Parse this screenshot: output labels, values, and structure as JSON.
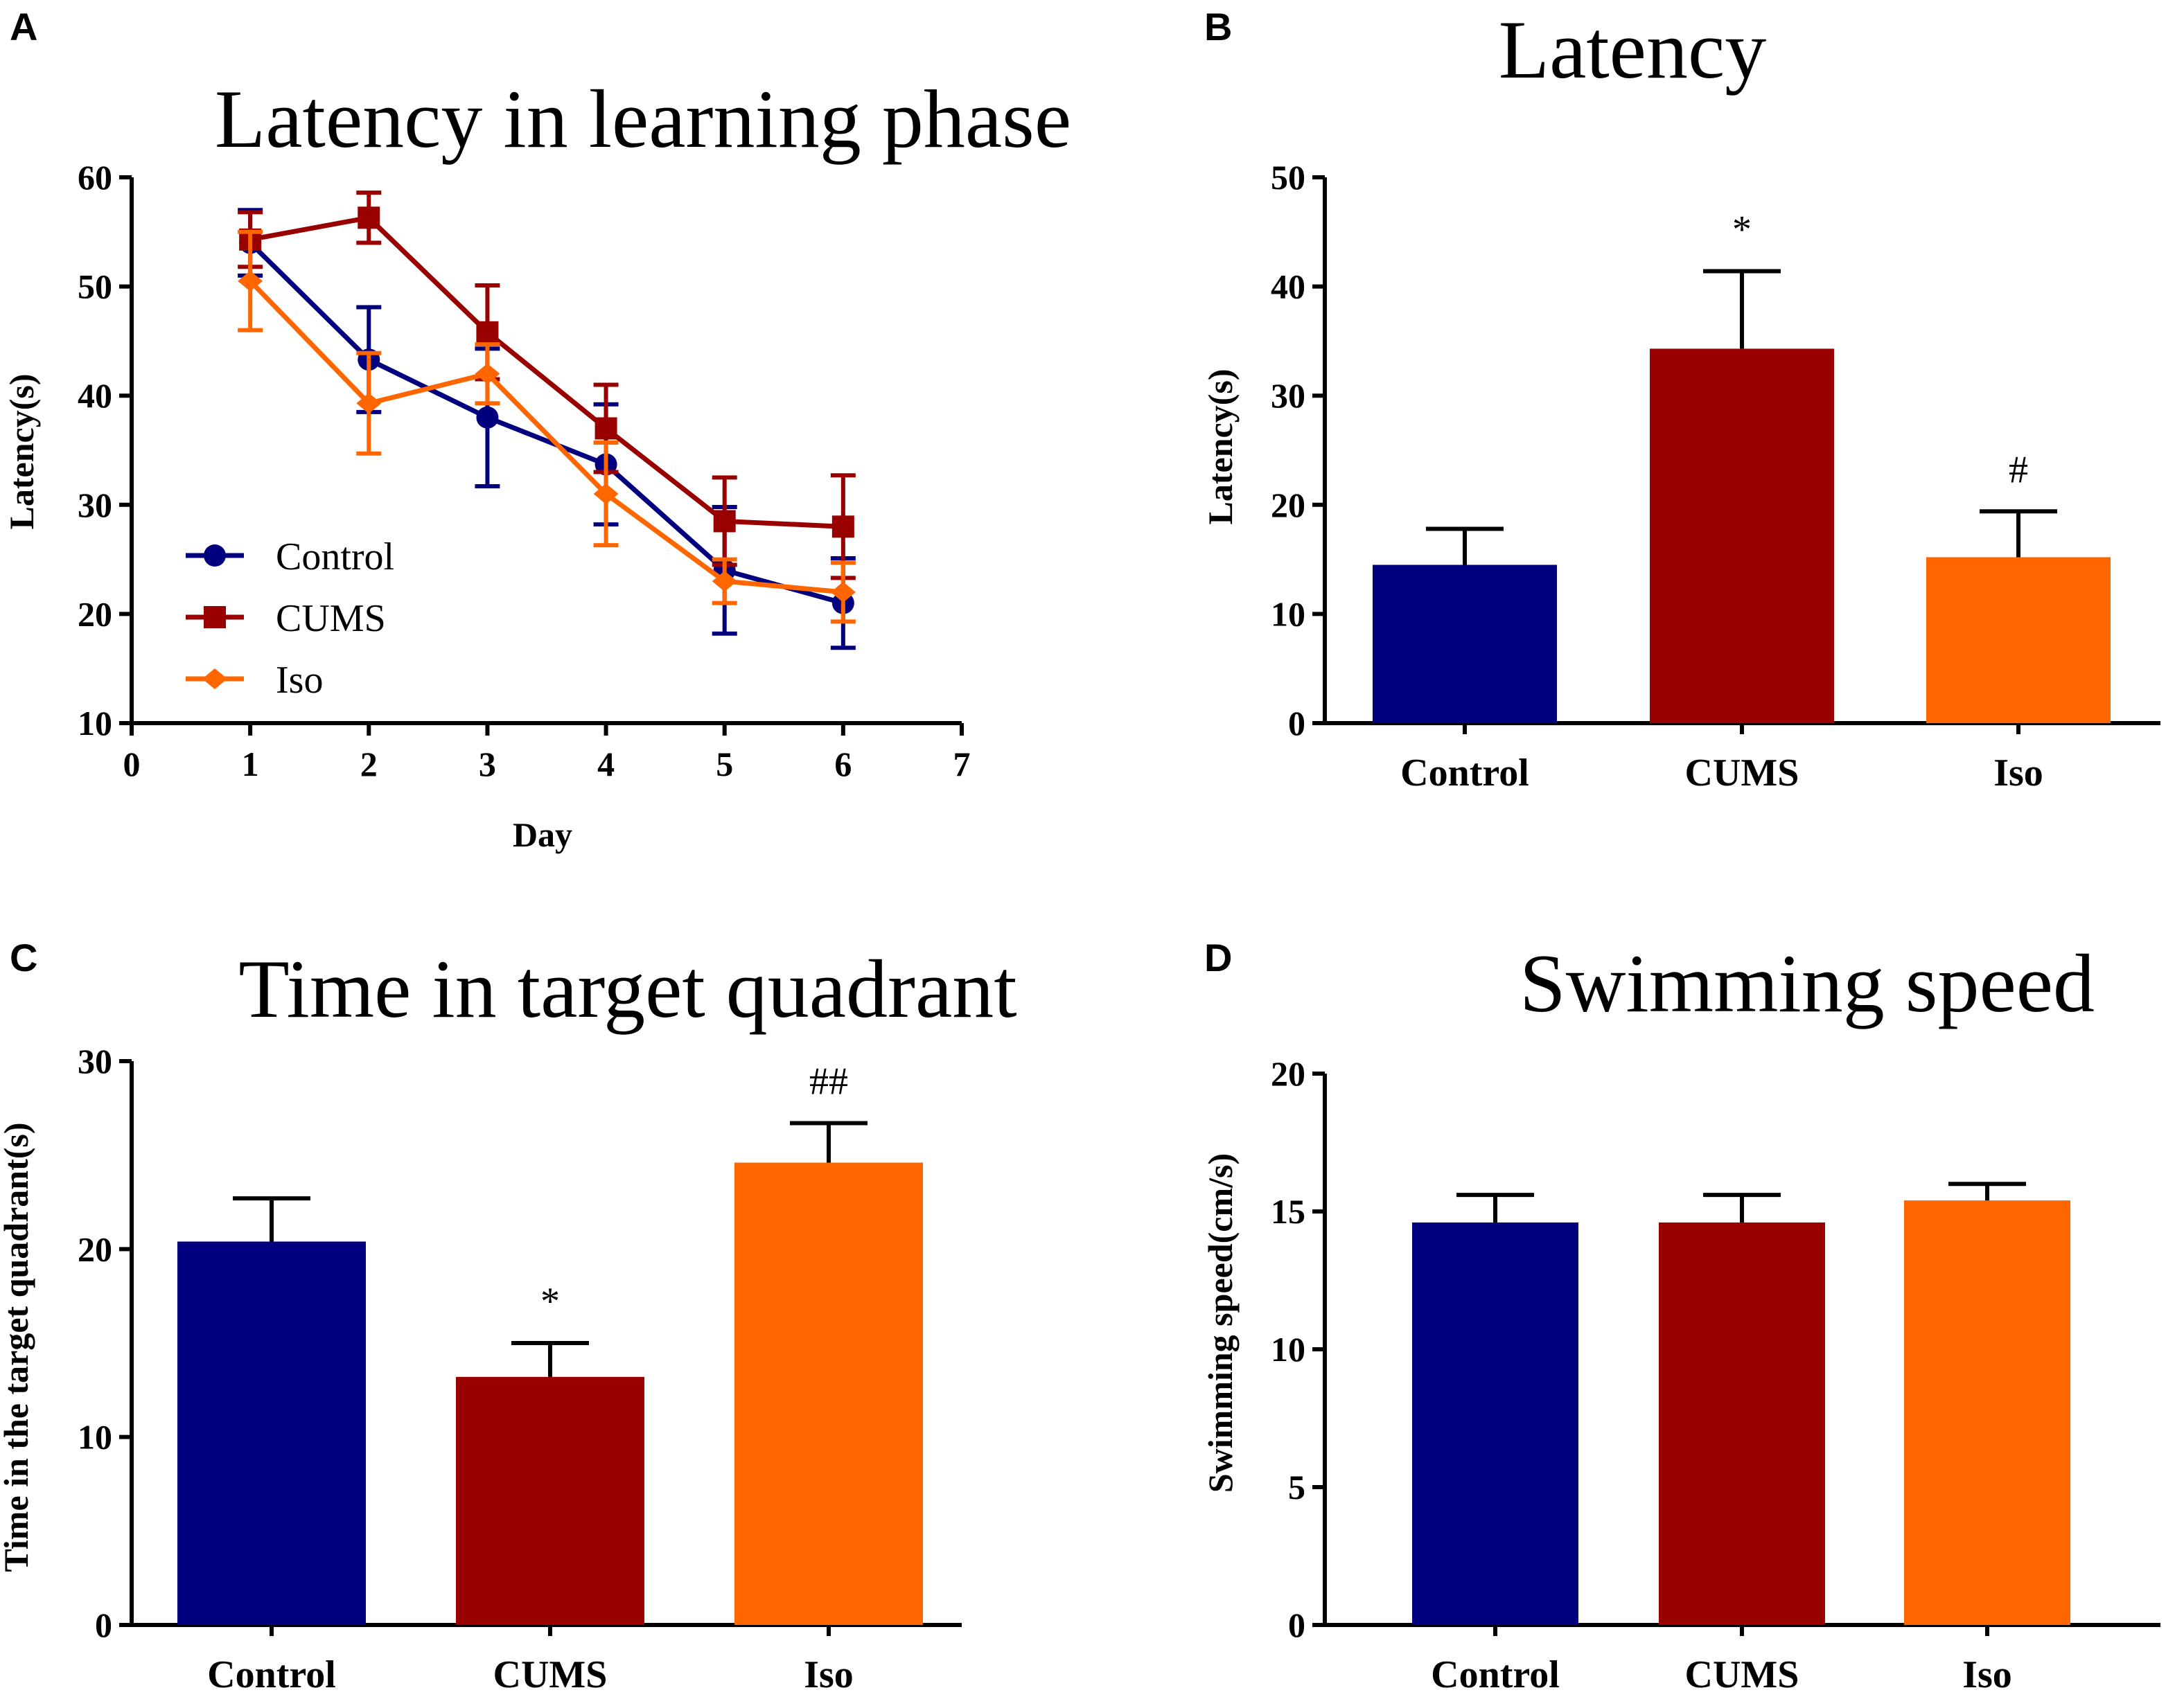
{
  "colors": {
    "control": "#00007f",
    "cums": "#990000",
    "iso": "#ff6600",
    "axis": "#000000"
  },
  "chart_data": [
    {
      "panel": "A",
      "type": "line",
      "title": "Latency in learning phase",
      "xlabel": "Day",
      "ylabel": "Latency(s)",
      "xlim": [
        0,
        7
      ],
      "ylim": [
        10,
        60
      ],
      "xticks": [
        0,
        1,
        2,
        3,
        4,
        5,
        6,
        7
      ],
      "yticks": [
        10,
        20,
        30,
        40,
        50,
        60
      ],
      "legend_position": "lower-left",
      "x": [
        1,
        2,
        3,
        4,
        5,
        6
      ],
      "series": [
        {
          "name": "Control",
          "color": "#00007f",
          "marker": "circle",
          "values": [
            54,
            43.3,
            38,
            33.7,
            24,
            21
          ],
          "errors": [
            3,
            4.8,
            6.3,
            5.5,
            5.8,
            4.1
          ]
        },
        {
          "name": "CUMS",
          "color": "#990000",
          "marker": "square",
          "values": [
            54.3,
            56.3,
            45.8,
            37,
            28.5,
            28
          ],
          "errors": [
            2.5,
            2.3,
            4.3,
            4,
            4,
            4.7
          ]
        },
        {
          "name": "Iso",
          "color": "#ff6600",
          "marker": "diamond",
          "values": [
            50.5,
            39.3,
            42,
            31,
            23,
            22
          ],
          "errors": [
            4.5,
            4.6,
            2.7,
            4.7,
            2,
            2.7
          ]
        }
      ]
    },
    {
      "panel": "B",
      "type": "bar",
      "title": "Latency",
      "xlabel": "",
      "ylabel": "Latency(s)",
      "ylim": [
        0,
        50
      ],
      "yticks": [
        0,
        10,
        20,
        30,
        40,
        50
      ],
      "categories": [
        "Control",
        "CUMS",
        "Iso"
      ],
      "values": [
        14.5,
        34.3,
        15.2
      ],
      "errors": [
        3.3,
        7.1,
        4.2
      ],
      "colors": [
        "#00007f",
        "#990000",
        "#ff6600"
      ],
      "annotations": [
        "",
        "*",
        "#"
      ]
    },
    {
      "panel": "C",
      "type": "bar",
      "title": "Time in target quadrant",
      "xlabel": "",
      "ylabel": "Time in the target quadrant(s)",
      "ylim": [
        0,
        30
      ],
      "yticks": [
        0,
        10,
        20,
        30
      ],
      "categories": [
        "Control",
        "CUMS",
        "Iso"
      ],
      "values": [
        20.4,
        13.2,
        24.6
      ],
      "errors": [
        2.3,
        1.8,
        2.1
      ],
      "colors": [
        "#00007f",
        "#990000",
        "#ff6600"
      ],
      "annotations": [
        "",
        "*",
        "##"
      ]
    },
    {
      "panel": "D",
      "type": "bar",
      "title": "Swimming speed",
      "xlabel": "",
      "ylabel": "Swimming speed(cm/s)",
      "ylim": [
        0,
        20
      ],
      "yticks": [
        0,
        5,
        10,
        15,
        20
      ],
      "categories": [
        "Control",
        "CUMS",
        "Iso"
      ],
      "values": [
        14.6,
        14.6,
        15.4
      ],
      "errors": [
        1.0,
        1.0,
        0.6
      ],
      "colors": [
        "#00007f",
        "#990000",
        "#ff6600"
      ],
      "annotations": [
        "",
        "",
        ""
      ]
    }
  ]
}
